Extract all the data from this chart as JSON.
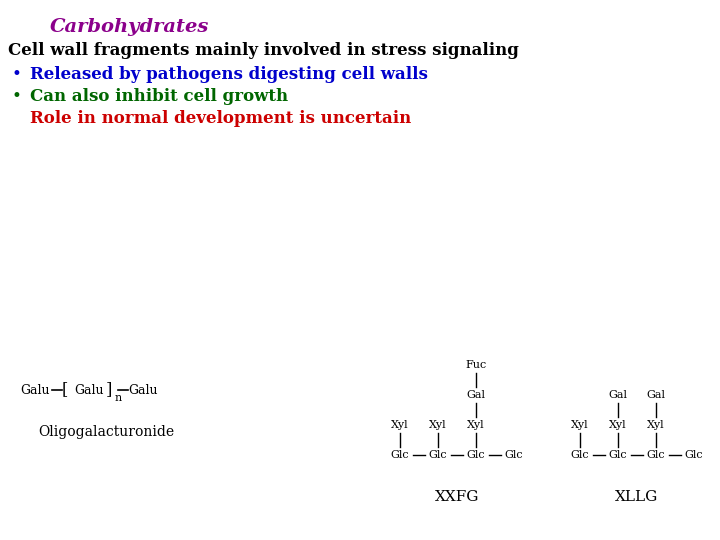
{
  "title": "Carbohydrates",
  "title_color": "#8B008B",
  "line1": "Cell wall fragments mainly involved in stress signaling",
  "line1_color": "#000000",
  "bullet1_text": "Released by pathogens digesting cell walls",
  "bullet1_color": "#0000CC",
  "bullet2_text": "Can also inhibit cell growth",
  "bullet2_color": "#006600",
  "line4": "Role in normal development is uncertain",
  "line4_color": "#CC0000",
  "bg_color": "#FFFFFF",
  "oligo_label": "Oligogalacturonide",
  "xxfg_label": "XXFG",
  "xllg_label": "XLLG"
}
